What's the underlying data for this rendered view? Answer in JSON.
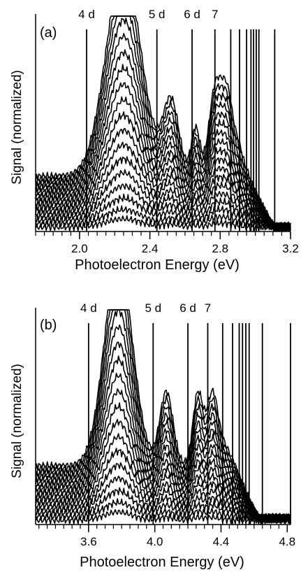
{
  "chart_data": [
    {
      "panel": "(a)",
      "type": "line",
      "xlabel": "Photoelectron Energy (eV)",
      "ylabel": "Signal (normalized)",
      "xlim": [
        1.75,
        3.2
      ],
      "ylim": [
        0,
        1.0
      ],
      "xticks": [
        2.0,
        2.4,
        2.8,
        3.2
      ],
      "xtick_labels": [
        "2.0",
        "2.4",
        "2.8",
        "3.2"
      ],
      "grid": false,
      "markers": [
        {
          "x": 2.04,
          "label": "4 d"
        },
        {
          "x": 2.44,
          "label": "5 d"
        },
        {
          "x": 2.64,
          "label": "6 d"
        },
        {
          "x": 2.77,
          "label": "7"
        },
        {
          "x": 2.86,
          "label": ""
        },
        {
          "x": 2.91,
          "label": ""
        },
        {
          "x": 2.95,
          "label": ""
        },
        {
          "x": 2.975,
          "label": ""
        },
        {
          "x": 2.99,
          "label": ""
        },
        {
          "x": 3.005,
          "label": ""
        },
        {
          "x": 3.02,
          "label": ""
        },
        {
          "x": 3.11,
          "label": ""
        }
      ],
      "traces": {
        "count": 18,
        "min_scale": 0.04,
        "max_scale": 1.0,
        "baseline_min": 0.02,
        "baseline_max": 0.3,
        "peaks": [
          {
            "center": 2.25,
            "width": 0.1,
            "amp": 0.95
          },
          {
            "center": 2.52,
            "width": 0.045,
            "amp": 0.34
          },
          {
            "center": 2.66,
            "width": 0.025,
            "amp": 0.22
          },
          {
            "center": 2.77,
            "width": 0.035,
            "amp": 0.38
          },
          {
            "center": 2.84,
            "width": 0.035,
            "amp": 0.37
          },
          {
            "center": 2.91,
            "width": 0.025,
            "amp": 0.1
          }
        ]
      }
    },
    {
      "panel": "(b)",
      "type": "line",
      "xlabel": "Photoelectron Energy (eV)",
      "ylabel": "Signal (normalized)",
      "xlim": [
        3.28,
        4.82
      ],
      "ylim": [
        0,
        1.0
      ],
      "xticks": [
        3.6,
        4.0,
        4.4,
        4.8
      ],
      "xtick_labels": [
        "3.6",
        "4.0",
        "4.4",
        "4.8"
      ],
      "grid": false,
      "markers": [
        {
          "x": 3.6,
          "label": "4 d"
        },
        {
          "x": 3.99,
          "label": "5 d"
        },
        {
          "x": 4.2,
          "label": "6 d"
        },
        {
          "x": 4.32,
          "label": "7"
        },
        {
          "x": 4.41,
          "label": ""
        },
        {
          "x": 4.47,
          "label": ""
        },
        {
          "x": 4.51,
          "label": ""
        },
        {
          "x": 4.53,
          "label": ""
        },
        {
          "x": 4.55,
          "label": ""
        },
        {
          "x": 4.57,
          "label": ""
        },
        {
          "x": 4.65,
          "label": ""
        },
        {
          "x": 4.82,
          "label": ""
        }
      ],
      "traces": {
        "count": 18,
        "min_scale": 0.04,
        "max_scale": 1.0,
        "baseline_min": 0.02,
        "baseline_max": 0.32,
        "peaks": [
          {
            "center": 3.78,
            "width": 0.085,
            "amp": 0.95
          },
          {
            "center": 4.07,
            "width": 0.04,
            "amp": 0.34
          },
          {
            "center": 4.26,
            "width": 0.03,
            "amp": 0.33
          },
          {
            "center": 4.35,
            "width": 0.035,
            "amp": 0.34
          },
          {
            "center": 4.43,
            "width": 0.03,
            "amp": 0.07
          }
        ]
      }
    }
  ]
}
